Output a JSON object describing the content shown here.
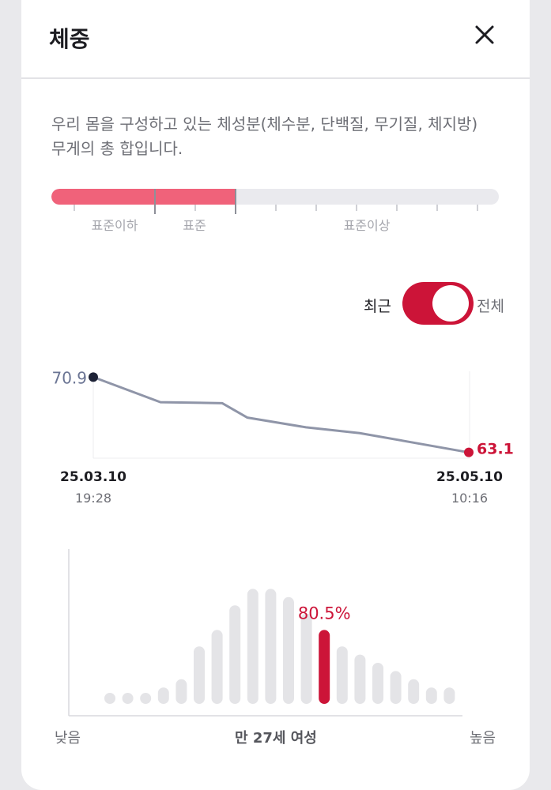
{
  "header": {
    "title": "체중"
  },
  "description": "우리 몸을 구성하고 있는 체성분(체수분, 단백질, 무기질, 체지방) 무게의 총 합입니다.",
  "range_bar": {
    "segments": [
      "표준이하",
      "표준",
      "표준이상"
    ],
    "fill_fraction": 0.41,
    "fill_color": "#f0627a"
  },
  "toggle": {
    "left_label": "최근",
    "right_label": "전체",
    "state": "on",
    "color": "#cc1438"
  },
  "weight_chart": {
    "start_value": "70.9",
    "end_value": "63.1",
    "start_date": "25.03.10",
    "start_time": "19:28",
    "end_date": "25.05.10",
    "end_time": "10:16"
  },
  "distribution": {
    "highlight_label": "80.5%",
    "low_label": "낮음",
    "center_label": "만 27세 여성",
    "high_label": "높음"
  },
  "chart_data": [
    {
      "type": "line",
      "title": "",
      "series": [
        {
          "values": [
            70.9,
            68.3,
            68.2,
            66.7,
            65.7,
            65.1,
            63.1
          ]
        }
      ],
      "x": [
        "25.03.10 19:28",
        "",
        "",
        "",
        "",
        "",
        "25.05.10 10:16"
      ],
      "annotations": [
        "70.9",
        "63.1"
      ]
    },
    {
      "type": "bar",
      "title": "",
      "values": [
        1,
        1,
        1,
        2,
        3,
        7,
        9,
        12,
        14,
        14,
        13,
        11,
        9,
        7,
        6,
        5,
        4,
        3,
        2,
        2
      ],
      "highlight_index": 12,
      "highlight_label": "80.5%",
      "xlabel": "만 27세 여성",
      "x_low": "낮음",
      "x_high": "높음"
    }
  ]
}
